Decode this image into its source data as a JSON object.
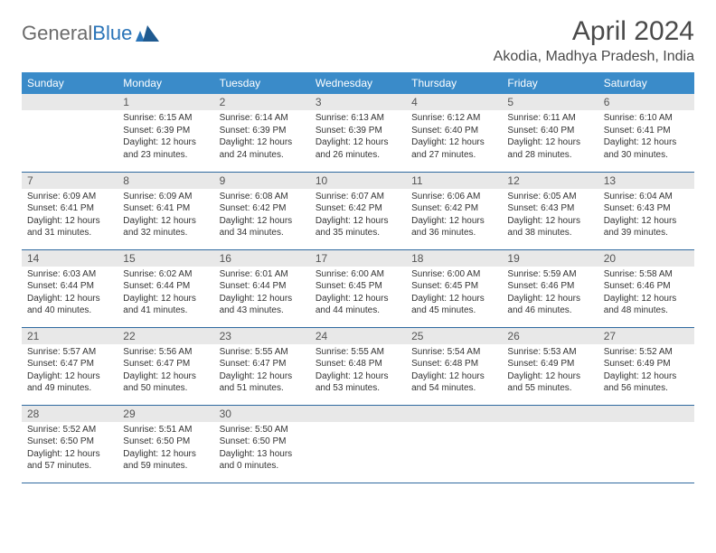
{
  "brand": {
    "part1": "General",
    "part2": "Blue"
  },
  "title": "April 2024",
  "location": "Akodia, Madhya Pradesh, India",
  "colors": {
    "header_bg": "#3a8bc9",
    "header_text": "#ffffff",
    "daynum_bg": "#e8e8e8",
    "row_border": "#2f6aa0",
    "logo_gray": "#6b6b6b",
    "logo_blue": "#2a74b8"
  },
  "weekdays": [
    "Sunday",
    "Monday",
    "Tuesday",
    "Wednesday",
    "Thursday",
    "Friday",
    "Saturday"
  ],
  "weeks": [
    [
      null,
      {
        "n": "1",
        "sr": "Sunrise: 6:15 AM",
        "ss": "Sunset: 6:39 PM",
        "d1": "Daylight: 12 hours",
        "d2": "and 23 minutes."
      },
      {
        "n": "2",
        "sr": "Sunrise: 6:14 AM",
        "ss": "Sunset: 6:39 PM",
        "d1": "Daylight: 12 hours",
        "d2": "and 24 minutes."
      },
      {
        "n": "3",
        "sr": "Sunrise: 6:13 AM",
        "ss": "Sunset: 6:39 PM",
        "d1": "Daylight: 12 hours",
        "d2": "and 26 minutes."
      },
      {
        "n": "4",
        "sr": "Sunrise: 6:12 AM",
        "ss": "Sunset: 6:40 PM",
        "d1": "Daylight: 12 hours",
        "d2": "and 27 minutes."
      },
      {
        "n": "5",
        "sr": "Sunrise: 6:11 AM",
        "ss": "Sunset: 6:40 PM",
        "d1": "Daylight: 12 hours",
        "d2": "and 28 minutes."
      },
      {
        "n": "6",
        "sr": "Sunrise: 6:10 AM",
        "ss": "Sunset: 6:41 PM",
        "d1": "Daylight: 12 hours",
        "d2": "and 30 minutes."
      }
    ],
    [
      {
        "n": "7",
        "sr": "Sunrise: 6:09 AM",
        "ss": "Sunset: 6:41 PM",
        "d1": "Daylight: 12 hours",
        "d2": "and 31 minutes."
      },
      {
        "n": "8",
        "sr": "Sunrise: 6:09 AM",
        "ss": "Sunset: 6:41 PM",
        "d1": "Daylight: 12 hours",
        "d2": "and 32 minutes."
      },
      {
        "n": "9",
        "sr": "Sunrise: 6:08 AM",
        "ss": "Sunset: 6:42 PM",
        "d1": "Daylight: 12 hours",
        "d2": "and 34 minutes."
      },
      {
        "n": "10",
        "sr": "Sunrise: 6:07 AM",
        "ss": "Sunset: 6:42 PM",
        "d1": "Daylight: 12 hours",
        "d2": "and 35 minutes."
      },
      {
        "n": "11",
        "sr": "Sunrise: 6:06 AM",
        "ss": "Sunset: 6:42 PM",
        "d1": "Daylight: 12 hours",
        "d2": "and 36 minutes."
      },
      {
        "n": "12",
        "sr": "Sunrise: 6:05 AM",
        "ss": "Sunset: 6:43 PM",
        "d1": "Daylight: 12 hours",
        "d2": "and 38 minutes."
      },
      {
        "n": "13",
        "sr": "Sunrise: 6:04 AM",
        "ss": "Sunset: 6:43 PM",
        "d1": "Daylight: 12 hours",
        "d2": "and 39 minutes."
      }
    ],
    [
      {
        "n": "14",
        "sr": "Sunrise: 6:03 AM",
        "ss": "Sunset: 6:44 PM",
        "d1": "Daylight: 12 hours",
        "d2": "and 40 minutes."
      },
      {
        "n": "15",
        "sr": "Sunrise: 6:02 AM",
        "ss": "Sunset: 6:44 PM",
        "d1": "Daylight: 12 hours",
        "d2": "and 41 minutes."
      },
      {
        "n": "16",
        "sr": "Sunrise: 6:01 AM",
        "ss": "Sunset: 6:44 PM",
        "d1": "Daylight: 12 hours",
        "d2": "and 43 minutes."
      },
      {
        "n": "17",
        "sr": "Sunrise: 6:00 AM",
        "ss": "Sunset: 6:45 PM",
        "d1": "Daylight: 12 hours",
        "d2": "and 44 minutes."
      },
      {
        "n": "18",
        "sr": "Sunrise: 6:00 AM",
        "ss": "Sunset: 6:45 PM",
        "d1": "Daylight: 12 hours",
        "d2": "and 45 minutes."
      },
      {
        "n": "19",
        "sr": "Sunrise: 5:59 AM",
        "ss": "Sunset: 6:46 PM",
        "d1": "Daylight: 12 hours",
        "d2": "and 46 minutes."
      },
      {
        "n": "20",
        "sr": "Sunrise: 5:58 AM",
        "ss": "Sunset: 6:46 PM",
        "d1": "Daylight: 12 hours",
        "d2": "and 48 minutes."
      }
    ],
    [
      {
        "n": "21",
        "sr": "Sunrise: 5:57 AM",
        "ss": "Sunset: 6:47 PM",
        "d1": "Daylight: 12 hours",
        "d2": "and 49 minutes."
      },
      {
        "n": "22",
        "sr": "Sunrise: 5:56 AM",
        "ss": "Sunset: 6:47 PM",
        "d1": "Daylight: 12 hours",
        "d2": "and 50 minutes."
      },
      {
        "n": "23",
        "sr": "Sunrise: 5:55 AM",
        "ss": "Sunset: 6:47 PM",
        "d1": "Daylight: 12 hours",
        "d2": "and 51 minutes."
      },
      {
        "n": "24",
        "sr": "Sunrise: 5:55 AM",
        "ss": "Sunset: 6:48 PM",
        "d1": "Daylight: 12 hours",
        "d2": "and 53 minutes."
      },
      {
        "n": "25",
        "sr": "Sunrise: 5:54 AM",
        "ss": "Sunset: 6:48 PM",
        "d1": "Daylight: 12 hours",
        "d2": "and 54 minutes."
      },
      {
        "n": "26",
        "sr": "Sunrise: 5:53 AM",
        "ss": "Sunset: 6:49 PM",
        "d1": "Daylight: 12 hours",
        "d2": "and 55 minutes."
      },
      {
        "n": "27",
        "sr": "Sunrise: 5:52 AM",
        "ss": "Sunset: 6:49 PM",
        "d1": "Daylight: 12 hours",
        "d2": "and 56 minutes."
      }
    ],
    [
      {
        "n": "28",
        "sr": "Sunrise: 5:52 AM",
        "ss": "Sunset: 6:50 PM",
        "d1": "Daylight: 12 hours",
        "d2": "and 57 minutes."
      },
      {
        "n": "29",
        "sr": "Sunrise: 5:51 AM",
        "ss": "Sunset: 6:50 PM",
        "d1": "Daylight: 12 hours",
        "d2": "and 59 minutes."
      },
      {
        "n": "30",
        "sr": "Sunrise: 5:50 AM",
        "ss": "Sunset: 6:50 PM",
        "d1": "Daylight: 13 hours",
        "d2": "and 0 minutes."
      },
      null,
      null,
      null,
      null
    ]
  ]
}
